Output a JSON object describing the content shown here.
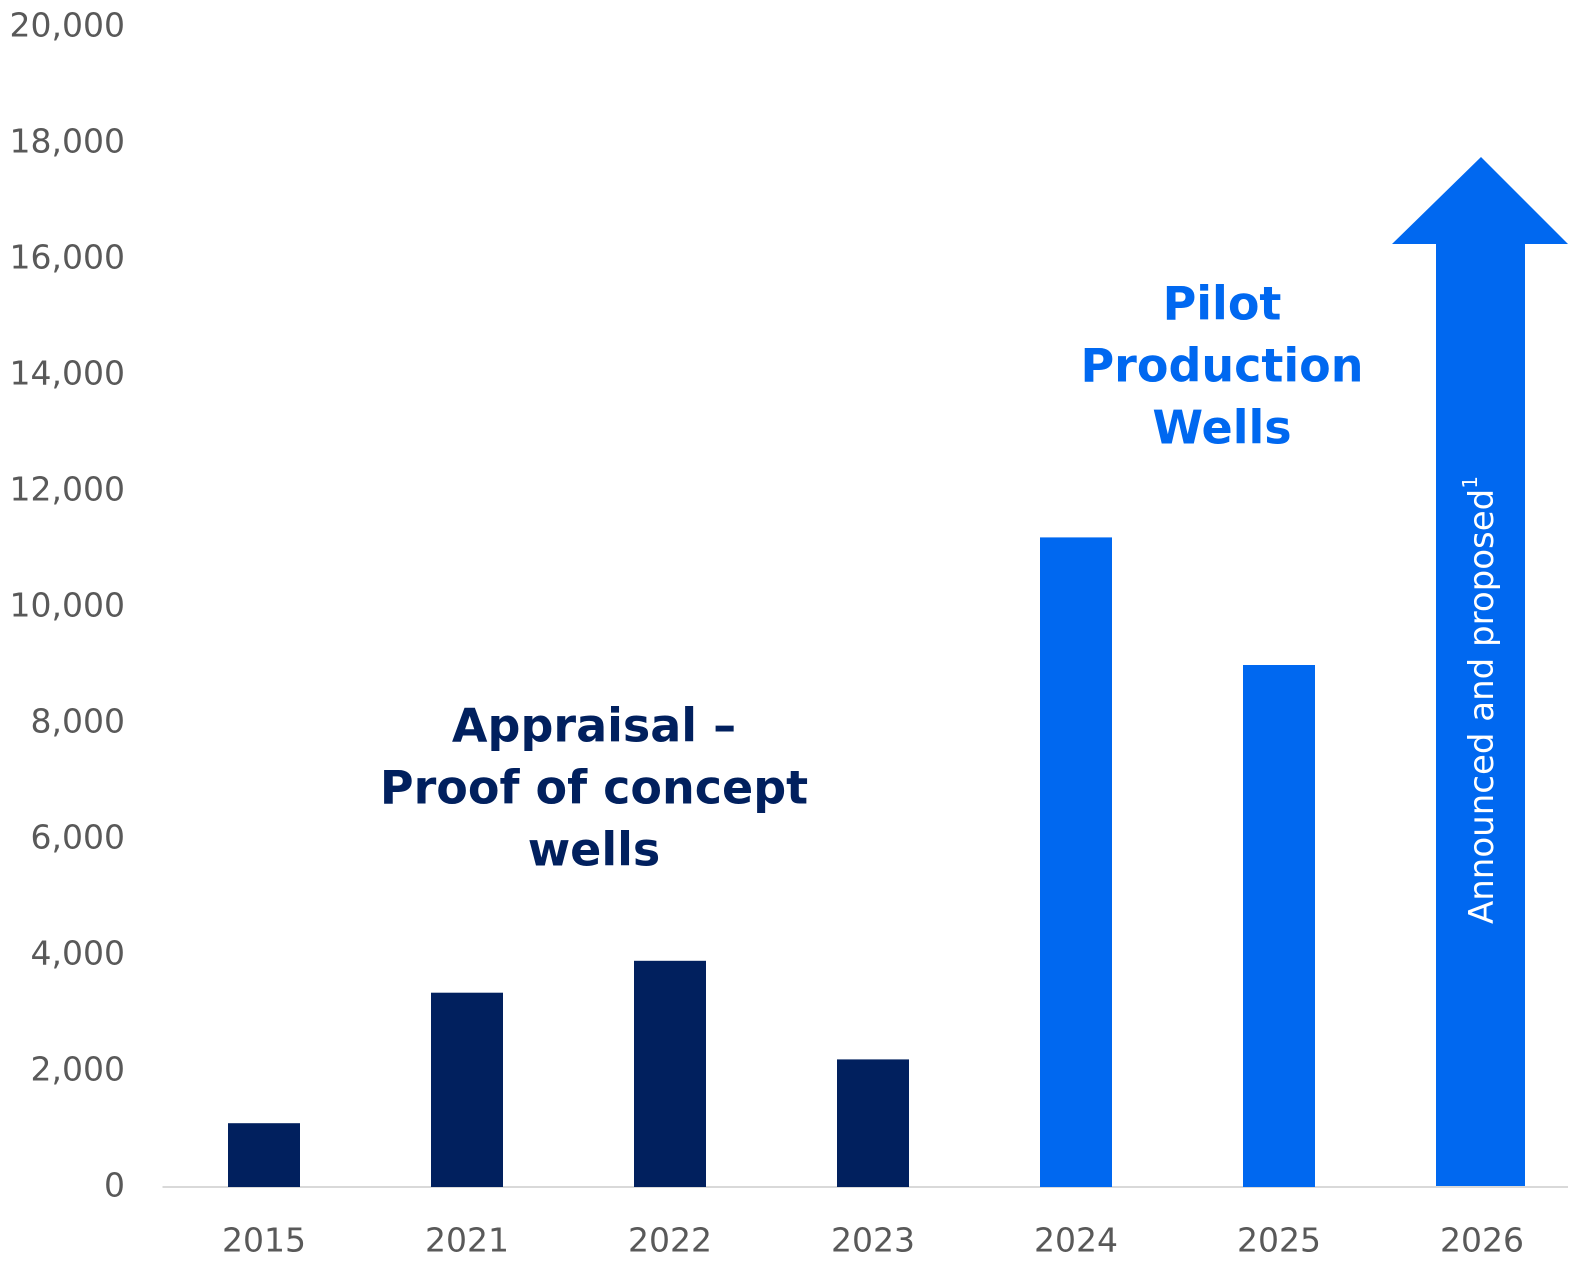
{
  "chart_data": {
    "type": "bar",
    "categories": [
      "2015",
      "2021",
      "2022",
      "2023",
      "2024",
      "2025",
      "2026"
    ],
    "values": [
      1100,
      3350,
      3900,
      2200,
      11200,
      9000,
      null
    ],
    "colors": [
      "#01205e",
      "#01205e",
      "#01205e",
      "#01205e",
      "#0068f0",
      "#0068f0",
      "#0068f0"
    ],
    "ylim": [
      0,
      20000
    ],
    "yticks": [
      0,
      {
        "value": 2000,
        "label": "2,000"
      },
      {
        "value": 4000,
        "label": "4,000"
      },
      {
        "value": 6000,
        "label": "6,000"
      },
      {
        "value": 8000,
        "label": "8,000"
      },
      {
        "value": 10000,
        "label": "10,000"
      },
      {
        "value": 12000,
        "label": "12,000"
      },
      {
        "value": 14000,
        "label": "14,000"
      },
      {
        "value": 16000,
        "label": "16,000"
      },
      {
        "value": 18000,
        "label": "18,000"
      },
      {
        "value": 20000,
        "label": "20,000"
      }
    ],
    "grid": false,
    "annotations": {
      "appraisal": [
        "Appraisal –",
        "Proof of concept",
        "wells"
      ],
      "pilot": [
        "Pilot",
        "Production",
        "Wells"
      ],
      "arrow": {
        "text": "Announced and proposed",
        "footnote": "1"
      }
    }
  }
}
